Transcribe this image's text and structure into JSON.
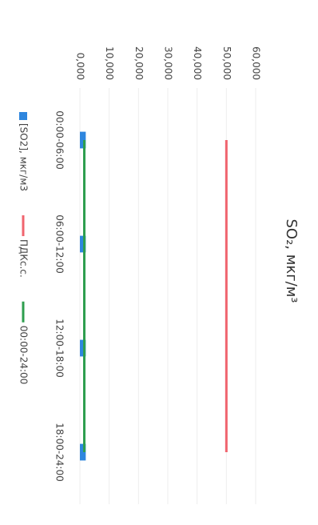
{
  "chart_data": {
    "type": "bar",
    "title": "SO₂, мкг/м³",
    "categories": [
      "00:00-06:00",
      "06:00-12:00",
      "12:00-18:00",
      "18:00-24:00"
    ],
    "series": [
      {
        "name": "[SO2], мкг/м3",
        "type": "bar",
        "color": "#2e86de",
        "values": [
          2,
          2,
          2,
          2
        ]
      },
      {
        "name": "ПДКс.с.",
        "type": "line",
        "color": "#f0646e",
        "values": [
          50,
          50,
          50,
          50
        ]
      },
      {
        "name": "00:00-24:00",
        "type": "line",
        "color": "#2e9e4e",
        "values": [
          1.5,
          1.5,
          1.5,
          1.5
        ]
      }
    ],
    "ylim": [
      0,
      60
    ],
    "yticks": [
      {
        "value": 0,
        "label": "0,000"
      },
      {
        "value": 10,
        "label": "10,000"
      },
      {
        "value": 20,
        "label": "20,000"
      },
      {
        "value": 30,
        "label": "30,000"
      },
      {
        "value": 40,
        "label": "40,000"
      },
      {
        "value": 50,
        "label": "50,000"
      },
      {
        "value": 60,
        "label": "60,000"
      }
    ],
    "grid": true
  }
}
